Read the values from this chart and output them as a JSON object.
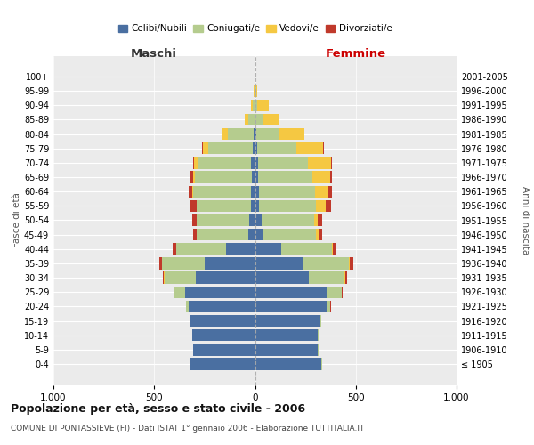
{
  "age_groups": [
    "100+",
    "95-99",
    "90-94",
    "85-89",
    "80-84",
    "75-79",
    "70-74",
    "65-69",
    "60-64",
    "55-59",
    "50-54",
    "45-49",
    "40-44",
    "35-39",
    "30-34",
    "25-29",
    "20-24",
    "15-19",
    "10-14",
    "5-9",
    "0-4"
  ],
  "birth_years": [
    "≤ 1905",
    "1906-1910",
    "1911-1915",
    "1916-1920",
    "1921-1925",
    "1926-1930",
    "1931-1935",
    "1936-1940",
    "1941-1945",
    "1946-1950",
    "1951-1955",
    "1956-1960",
    "1961-1965",
    "1966-1970",
    "1971-1975",
    "1976-1980",
    "1981-1985",
    "1986-1990",
    "1991-1995",
    "1996-2000",
    "2001-2005"
  ],
  "males": {
    "celibi": [
      0,
      1,
      2,
      4,
      8,
      12,
      18,
      14,
      18,
      22,
      28,
      32,
      145,
      250,
      295,
      345,
      330,
      320,
      310,
      305,
      320
    ],
    "coniugati": [
      0,
      2,
      8,
      28,
      125,
      220,
      265,
      285,
      290,
      265,
      260,
      255,
      245,
      210,
      155,
      55,
      12,
      4,
      3,
      3,
      3
    ],
    "vedovi": [
      0,
      2,
      10,
      20,
      28,
      28,
      18,
      8,
      4,
      4,
      2,
      2,
      2,
      2,
      2,
      2,
      2,
      0,
      0,
      0,
      0
    ],
    "divorziati": [
      0,
      0,
      0,
      0,
      0,
      4,
      4,
      14,
      18,
      28,
      22,
      18,
      18,
      12,
      4,
      2,
      0,
      0,
      0,
      0,
      0
    ]
  },
  "females": {
    "nubili": [
      0,
      2,
      3,
      4,
      8,
      12,
      14,
      14,
      18,
      22,
      32,
      42,
      130,
      235,
      265,
      355,
      355,
      320,
      310,
      310,
      330
    ],
    "coniugate": [
      0,
      3,
      10,
      32,
      110,
      195,
      250,
      270,
      280,
      280,
      260,
      260,
      250,
      230,
      180,
      75,
      18,
      8,
      4,
      4,
      4
    ],
    "vedove": [
      0,
      5,
      55,
      80,
      125,
      130,
      115,
      90,
      68,
      48,
      18,
      14,
      8,
      4,
      2,
      2,
      2,
      0,
      0,
      0,
      0
    ],
    "divorziate": [
      0,
      0,
      0,
      2,
      2,
      4,
      4,
      8,
      18,
      28,
      22,
      18,
      18,
      18,
      8,
      2,
      2,
      0,
      0,
      0,
      0
    ]
  },
  "colors": {
    "celibi_nubili": "#4a6fa1",
    "coniugati": "#b5cc8e",
    "vedovi": "#f5c842",
    "divorziati": "#c0392b"
  },
  "title": "Popolazione per età, sesso e stato civile - 2006",
  "subtitle": "COMUNE DI PONTASSIEVE (FI) - Dati ISTAT 1° gennaio 2006 - Elaborazione TUTTITALIA.IT",
  "xlabel_left": "Maschi",
  "xlabel_right": "Femmine",
  "ylabel_left": "Fasce di età",
  "ylabel_right": "Anni di nascita",
  "xlim": 1000,
  "background_color": "#ffffff",
  "plot_bg_color": "#ebebeb",
  "grid_color": "#ffffff"
}
